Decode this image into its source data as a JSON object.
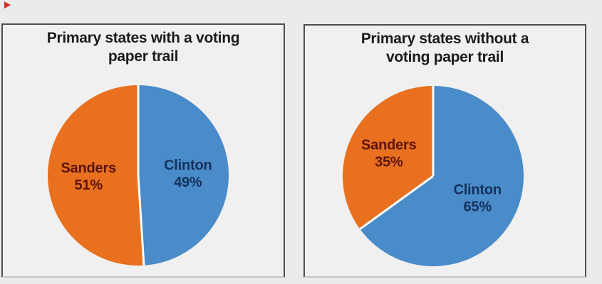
{
  "page": {
    "background_color": "#ebebeb",
    "panel_border_color": "#4e4e4e",
    "marker_color": "#d03022"
  },
  "chart_data": [
    {
      "type": "pie",
      "title": "Primary states with a voting paper trail",
      "title_lines": [
        "Primary states with a voting",
        "paper trail"
      ],
      "start_angle_deg": 0,
      "direction": "counterclockwise",
      "legend_position": "inside-slices",
      "slices": [
        {
          "label": "Sanders",
          "value": 51,
          "color": "#e8701f",
          "text_color": "#5c1408"
        },
        {
          "label": "Clinton",
          "value": 49,
          "color": "#4a8bc9",
          "text_color": "#14325c"
        }
      ]
    },
    {
      "type": "pie",
      "title": "Primary states without a voting paper trail",
      "title_lines": [
        "Primary states without a",
        "voting paper trail"
      ],
      "start_angle_deg": 0,
      "direction": "counterclockwise",
      "legend_position": "inside-slices",
      "slices": [
        {
          "label": "Sanders",
          "value": 35,
          "color": "#e8701f",
          "text_color": "#5c1408"
        },
        {
          "label": "Clinton",
          "value": 65,
          "color": "#4a8bc9",
          "text_color": "#14325c"
        }
      ]
    }
  ]
}
